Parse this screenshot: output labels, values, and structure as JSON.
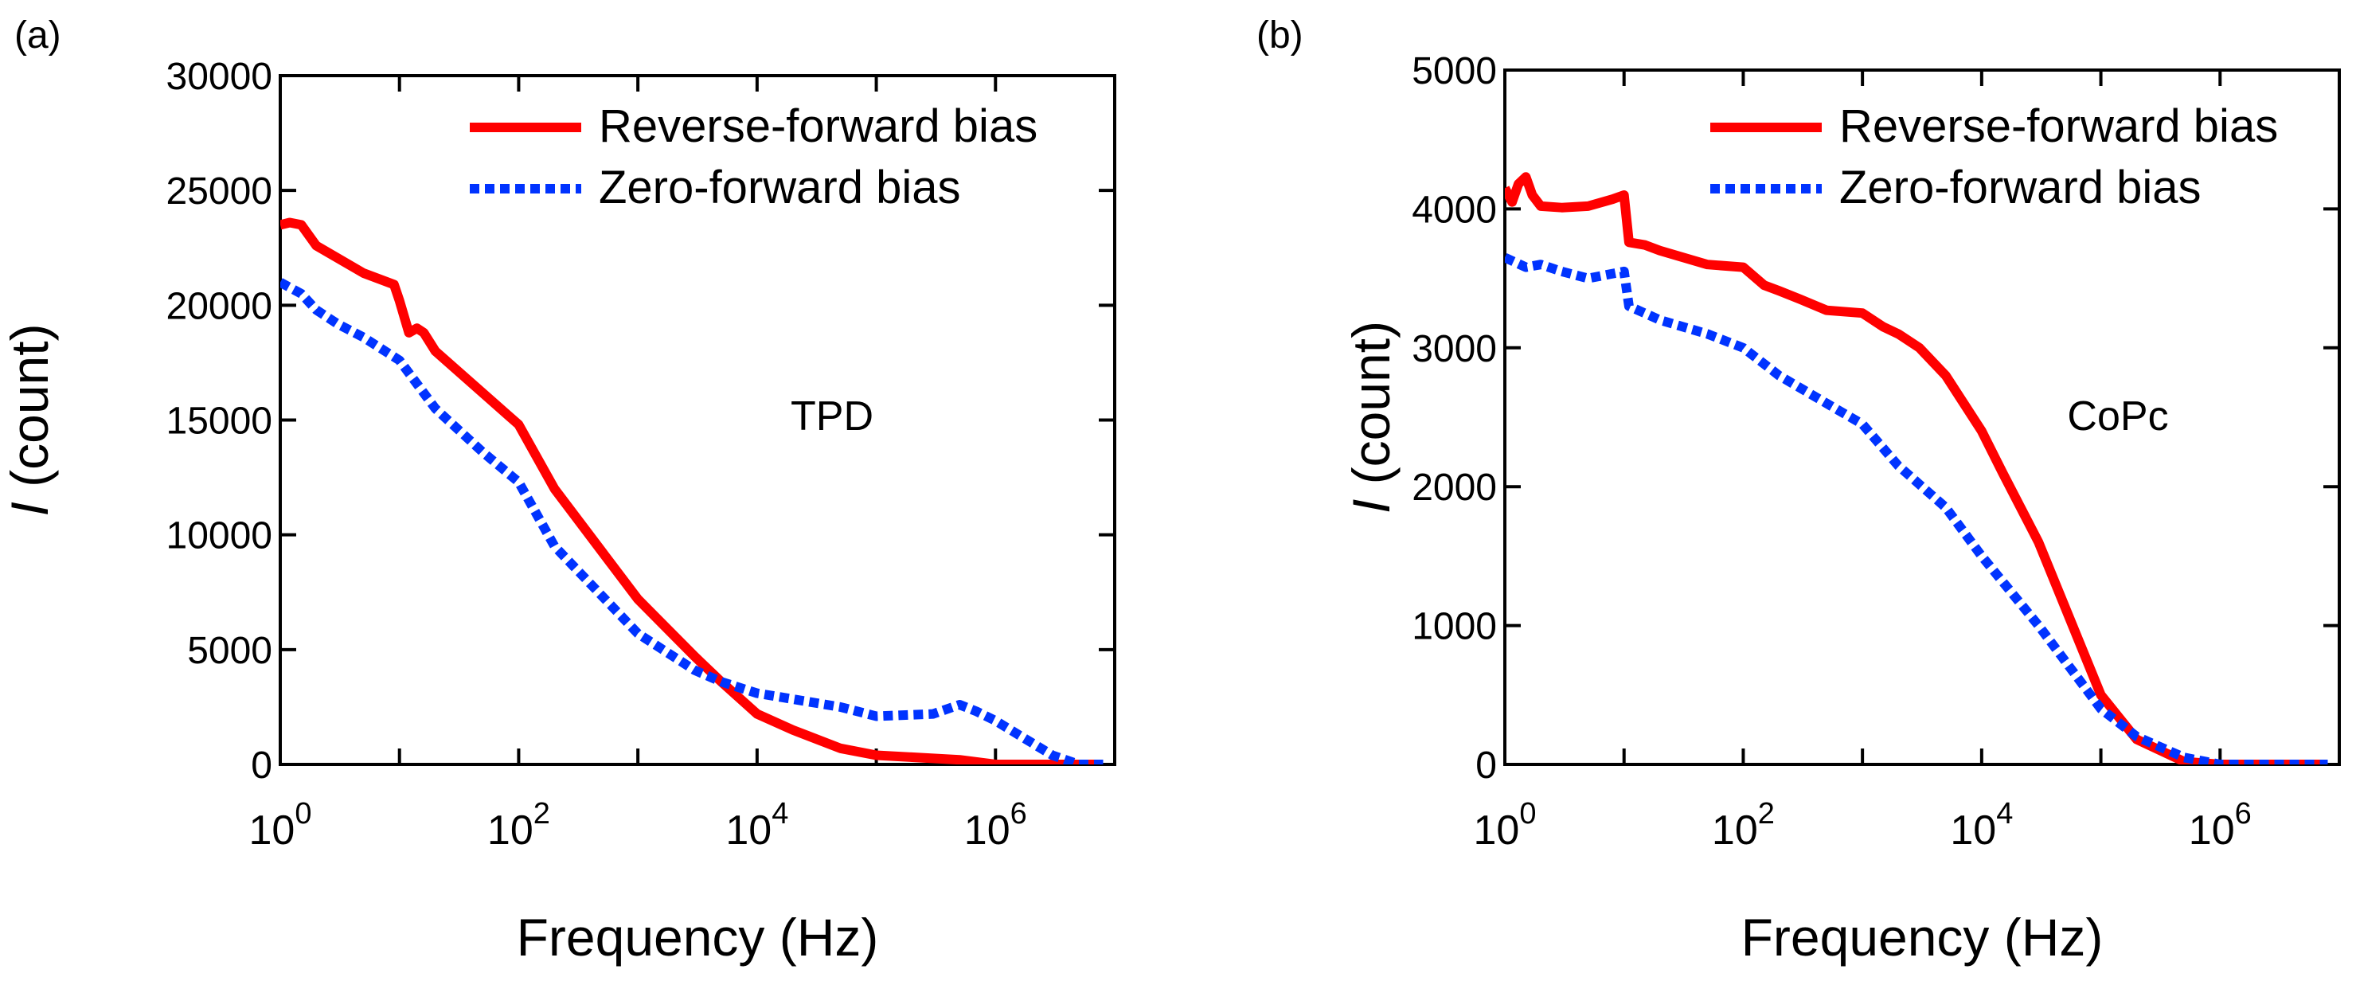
{
  "chart_data": [
    {
      "type": "line",
      "panel_label": "(a)",
      "annotation": "TPD",
      "xlabel": "Frequency (Hz)",
      "ylabel_italic": "I",
      "ylabel_rest": " (count)",
      "xscale": "log",
      "xlim": [
        1,
        10000000
      ],
      "ylim": [
        0,
        30000
      ],
      "x_ticks": [
        {
          "base": "10",
          "exp": "0",
          "value": 1
        },
        {
          "base": "10",
          "exp": "2",
          "value": 100
        },
        {
          "base": "10",
          "exp": "4",
          "value": 10000
        },
        {
          "base": "10",
          "exp": "6",
          "value": 1000000
        }
      ],
      "y_ticks": [
        0,
        5000,
        10000,
        15000,
        20000,
        25000,
        30000
      ],
      "legend_position": "top-right",
      "series": [
        {
          "name": "Reverse-forward bias",
          "color": "#ff0000",
          "style": "solid",
          "x": [
            1,
            1.2,
            1.5,
            2,
            5,
            9,
            10,
            12,
            14,
            16,
            20,
            100,
            200,
            1000,
            3000,
            5000,
            10000,
            20000,
            50000,
            100000,
            500000,
            1000000,
            5000000,
            8000000
          ],
          "y": [
            23500,
            23600,
            23500,
            22600,
            21400,
            20900,
            20200,
            18800,
            19000,
            18800,
            18000,
            14800,
            12000,
            7200,
            4700,
            3600,
            2200,
            1500,
            700,
            400,
            200,
            0,
            0,
            0
          ]
        },
        {
          "name": "Zero-forward bias",
          "color": "#0033ff",
          "style": "dotted",
          "x": [
            1,
            1.5,
            2,
            3,
            5,
            10,
            20,
            50,
            100,
            200,
            1000,
            3000,
            5000,
            10000,
            50000,
            100000,
            300000,
            500000,
            700000,
            1000000,
            3000000,
            5000000,
            8000000
          ],
          "y": [
            21000,
            20500,
            19800,
            19200,
            18600,
            17600,
            15500,
            13600,
            12300,
            9500,
            5700,
            4100,
            3600,
            3100,
            2500,
            2100,
            2200,
            2600,
            2300,
            1900,
            400,
            0,
            0
          ]
        }
      ]
    },
    {
      "type": "line",
      "panel_label": "(b)",
      "annotation": "CoPc",
      "xlabel": "Frequency (Hz)",
      "ylabel_italic": "I",
      "ylabel_rest": " (count)",
      "xscale": "log",
      "xlim": [
        1,
        10000000
      ],
      "ylim": [
        0,
        5000
      ],
      "x_ticks": [
        {
          "base": "10",
          "exp": "0",
          "value": 1
        },
        {
          "base": "10",
          "exp": "2",
          "value": 100
        },
        {
          "base": "10",
          "exp": "4",
          "value": 10000
        },
        {
          "base": "10",
          "exp": "6",
          "value": 1000000
        }
      ],
      "y_ticks": [
        0,
        1000,
        2000,
        3000,
        4000,
        5000
      ],
      "legend_position": "top-right",
      "series": [
        {
          "name": "Reverse-forward bias",
          "color": "#ff0000",
          "style": "solid",
          "x": [
            1,
            1.15,
            1.3,
            1.5,
            1.7,
            2,
            3,
            5,
            8,
            10,
            11,
            15,
            20,
            50,
            100,
            150,
            200,
            300,
            500,
            1000,
            1500,
            2000,
            3000,
            5000,
            10000,
            15000,
            30000,
            100000,
            200000,
            500000,
            1000000,
            3000000,
            8000000
          ],
          "y": [
            4150,
            4050,
            4180,
            4230,
            4100,
            4020,
            4010,
            4020,
            4070,
            4100,
            3760,
            3740,
            3700,
            3600,
            3580,
            3450,
            3410,
            3350,
            3270,
            3250,
            3150,
            3100,
            3000,
            2800,
            2400,
            2100,
            1600,
            500,
            180,
            20,
            0,
            0,
            0
          ]
        },
        {
          "name": "Zero-forward bias",
          "color": "#0033ff",
          "style": "dotted",
          "x": [
            1,
            1.5,
            2,
            3,
            5,
            10,
            11,
            20,
            50,
            100,
            200,
            500,
            1000,
            2000,
            5000,
            10000,
            30000,
            100000,
            200000,
            500000,
            1000000,
            3000000,
            8000000
          ],
          "y": [
            3650,
            3580,
            3600,
            3550,
            3500,
            3550,
            3300,
            3200,
            3100,
            3000,
            2800,
            2600,
            2450,
            2150,
            1850,
            1500,
            1000,
            400,
            200,
            50,
            0,
            0,
            0
          ]
        }
      ]
    }
  ]
}
